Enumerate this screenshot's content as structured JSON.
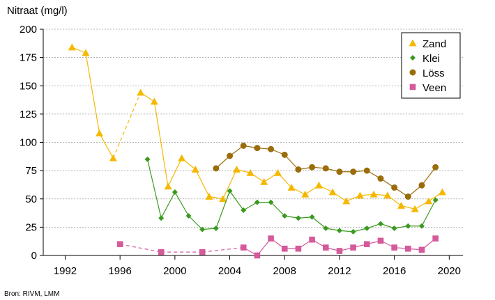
{
  "chart_data": {
    "type": "line",
    "ylabel": "Nitraat (mg/l)",
    "xlabel": "",
    "source": "Bron: RIVM, LMM",
    "xlim": [
      1990.4,
      2021.0
    ],
    "ylim": [
      0,
      200
    ],
    "xticks": [
      1992,
      1996,
      2000,
      2004,
      2008,
      2012,
      2016,
      2020
    ],
    "yticks": [
      0,
      25,
      50,
      75,
      100,
      125,
      150,
      175,
      200
    ],
    "grid": "horizontal-dashed",
    "legend_position": "top-right",
    "series": [
      {
        "name": "Zand",
        "color": "#f5b800",
        "marker": "triangle",
        "points": [
          [
            1992.5,
            184
          ],
          [
            1993.5,
            179
          ],
          [
            1994.5,
            108
          ],
          [
            1995.5,
            86
          ],
          [
            1997.5,
            144
          ],
          [
            1998.5,
            136
          ],
          [
            1999.5,
            61
          ],
          [
            2000.5,
            86
          ],
          [
            2001.5,
            76
          ],
          [
            2002.5,
            52
          ],
          [
            2003.5,
            50
          ],
          [
            2004.5,
            76
          ],
          [
            2005.5,
            73
          ],
          [
            2006.5,
            65
          ],
          [
            2007.5,
            73
          ],
          [
            2008.5,
            60
          ],
          [
            2009.5,
            54
          ],
          [
            2010.5,
            62
          ],
          [
            2011.5,
            56
          ],
          [
            2012.5,
            48
          ],
          [
            2013.5,
            53
          ],
          [
            2014.5,
            54
          ],
          [
            2015.5,
            53
          ],
          [
            2016.5,
            44
          ],
          [
            2017.5,
            41
          ],
          [
            2018.5,
            48
          ],
          [
            2019.5,
            56
          ]
        ],
        "dashed_segments": [
          [
            3,
            4
          ]
        ]
      },
      {
        "name": "Klei",
        "color": "#3a9a1e",
        "marker": "diamond",
        "points": [
          [
            1998,
            85
          ],
          [
            1999,
            33
          ],
          [
            2000,
            56
          ],
          [
            2001,
            35
          ],
          [
            2002,
            23
          ],
          [
            2003,
            24
          ],
          [
            2004,
            57
          ],
          [
            2005,
            40
          ],
          [
            2006,
            47
          ],
          [
            2007,
            47
          ],
          [
            2008,
            35
          ],
          [
            2009,
            33
          ],
          [
            2010,
            34
          ],
          [
            2011,
            24
          ],
          [
            2012,
            22
          ],
          [
            2013,
            21
          ],
          [
            2014,
            24
          ],
          [
            2015,
            28
          ],
          [
            2016,
            24
          ],
          [
            2017,
            26
          ],
          [
            2018,
            26
          ],
          [
            2019,
            49
          ]
        ],
        "dashed_segments": []
      },
      {
        "name": "Löss",
        "color": "#9a6c0a",
        "marker": "circle",
        "points": [
          [
            2003,
            77
          ],
          [
            2004,
            88
          ],
          [
            2005,
            97
          ],
          [
            2006,
            95
          ],
          [
            2007,
            94
          ],
          [
            2008,
            89
          ],
          [
            2009,
            76
          ],
          [
            2010,
            78
          ],
          [
            2011,
            77
          ],
          [
            2012,
            74
          ],
          [
            2013,
            74
          ],
          [
            2014,
            75
          ],
          [
            2015,
            68
          ],
          [
            2016,
            60
          ],
          [
            2017,
            52
          ],
          [
            2018,
            62
          ],
          [
            2019,
            78
          ]
        ],
        "dashed_segments": []
      },
      {
        "name": "Veen",
        "color": "#d45a9a",
        "marker": "square",
        "points": [
          [
            1996,
            10
          ],
          [
            1999,
            3
          ],
          [
            2002,
            3
          ],
          [
            2005,
            7
          ],
          [
            2006,
            0
          ],
          [
            2007,
            15
          ],
          [
            2008,
            6
          ],
          [
            2009,
            6
          ],
          [
            2010,
            14
          ],
          [
            2011,
            7
          ],
          [
            2012,
            4
          ],
          [
            2013,
            7
          ],
          [
            2014,
            10
          ],
          [
            2015,
            13
          ],
          [
            2016,
            7
          ],
          [
            2017,
            6
          ],
          [
            2018,
            5
          ],
          [
            2019,
            15
          ]
        ],
        "dashed_segments": [
          [
            0,
            1
          ],
          [
            1,
            2
          ],
          [
            2,
            3
          ]
        ]
      }
    ]
  }
}
